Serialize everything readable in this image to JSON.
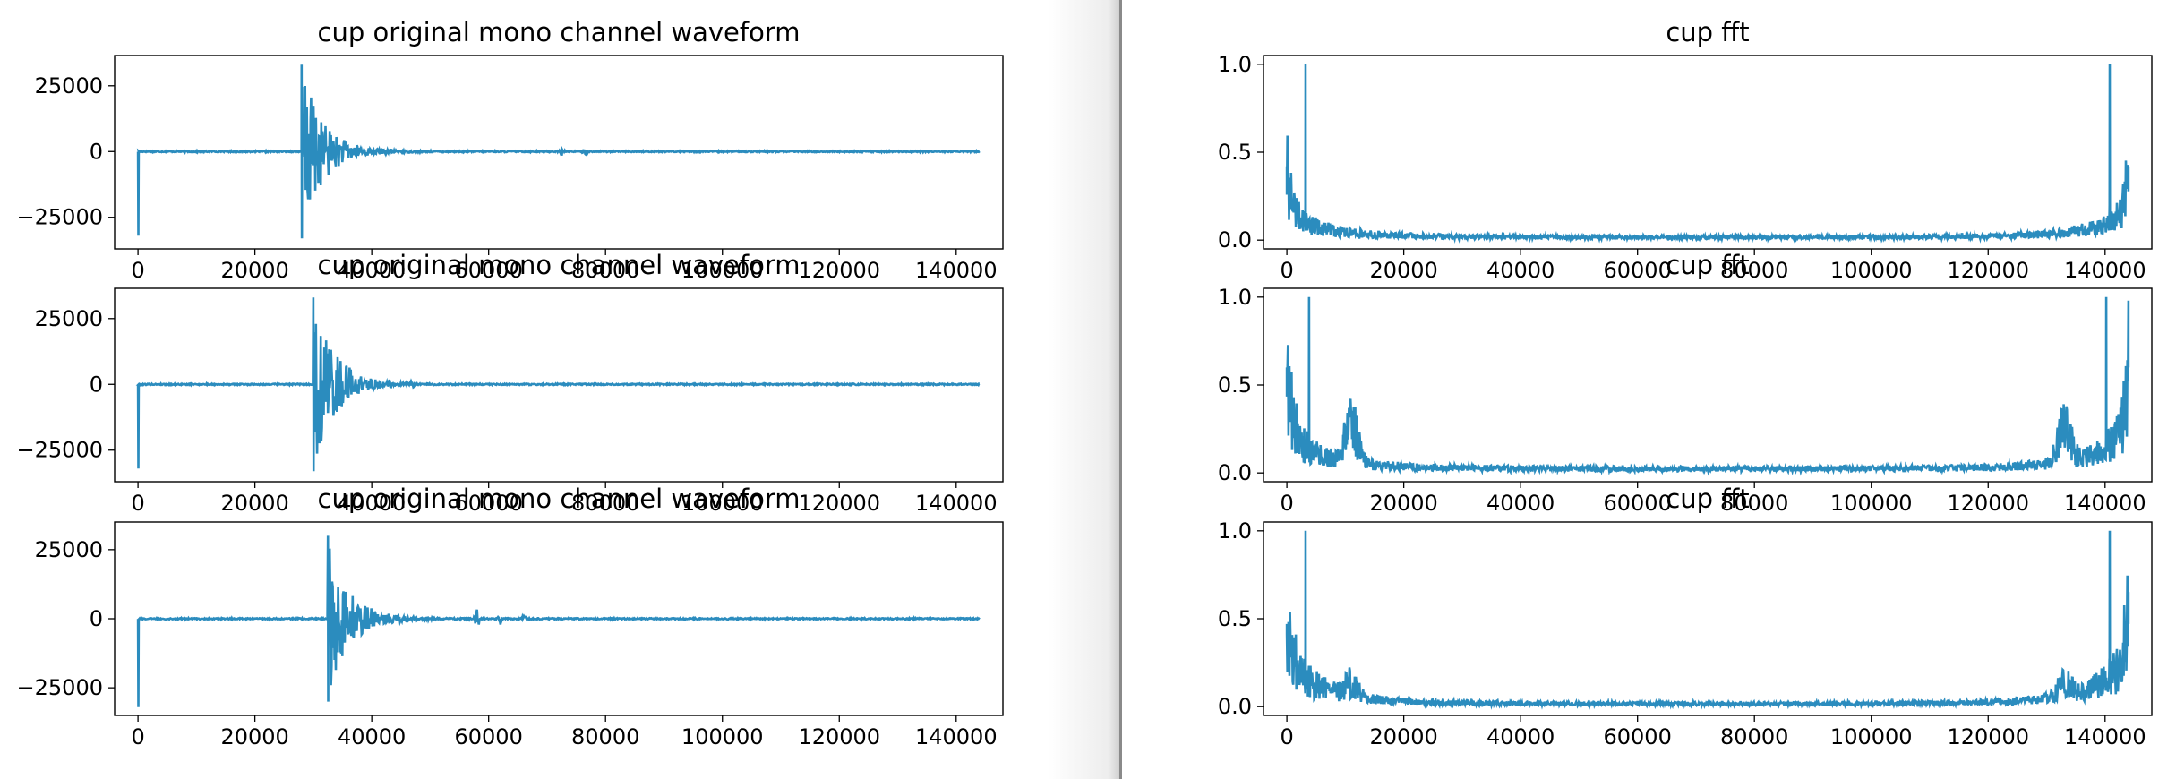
{
  "window": {
    "panels": [
      "waveform-column",
      "fft-column"
    ]
  },
  "colors": {
    "line": "#2b8cbe",
    "axes": "#000000",
    "background": "#ffffff",
    "divider": "#8a8a8a"
  },
  "chart_data": [
    {
      "type": "line",
      "title": "cup original mono channel waveform",
      "xlabel": "",
      "ylabel": "",
      "xlim": [
        -4000,
        148000
      ],
      "ylim": [
        -37000,
        36500
      ],
      "xticks": [
        0,
        20000,
        40000,
        60000,
        80000,
        100000,
        120000,
        140000
      ],
      "yticks": [
        -25000,
        0,
        25000
      ],
      "xtick_labels": [
        "0",
        "20000",
        "40000",
        "60000",
        "80000",
        "100000",
        "120000",
        "140000"
      ],
      "ytick_labels": [
        "−25000",
        "0",
        "25000"
      ],
      "grid": false,
      "series": [
        {
          "kind": "waveform",
          "length": 144000,
          "start_spike": [
            0,
            -32000
          ],
          "spikes": [
            {
              "x": 28000,
              "max": 33000,
              "min": -33000,
              "decay": 3500
            }
          ],
          "minor_bursts": [
            {
              "x": 72500,
              "amp": 1500
            },
            {
              "x": 76500,
              "amp": 1300
            }
          ],
          "noise": 250
        }
      ]
    },
    {
      "type": "line",
      "title": "cup fft",
      "xlabel": "",
      "ylabel": "",
      "xlim": [
        -4000,
        148000
      ],
      "ylim": [
        -0.05,
        1.05
      ],
      "xticks": [
        0,
        20000,
        40000,
        60000,
        80000,
        100000,
        120000,
        140000
      ],
      "yticks": [
        0.0,
        0.5,
        1.0
      ],
      "xtick_labels": [
        "0",
        "20000",
        "40000",
        "60000",
        "80000",
        "100000",
        "120000",
        "140000"
      ],
      "ytick_labels": [
        "0.0",
        "0.5",
        "1.0"
      ],
      "grid": false,
      "series": [
        {
          "kind": "fft",
          "length": 144000,
          "peak_x": 3200,
          "peak": 1.0,
          "start_level": 0.42,
          "mid_floor": 0.02,
          "spread": 0.15,
          "hump": 0
        }
      ]
    },
    {
      "type": "line",
      "title": "cup original mono channel waveform",
      "xlabel": "",
      "ylabel": "",
      "xlim": [
        -4000,
        148000
      ],
      "ylim": [
        -37000,
        36500
      ],
      "xticks": [
        0,
        20000,
        40000,
        60000,
        80000,
        100000,
        120000,
        140000
      ],
      "yticks": [
        -25000,
        0,
        25000
      ],
      "xtick_labels": [
        "0",
        "20000",
        "40000",
        "60000",
        "80000",
        "100000",
        "120000",
        "140000"
      ],
      "ytick_labels": [
        "−25000",
        "0",
        "25000"
      ],
      "grid": false,
      "series": [
        {
          "kind": "waveform",
          "length": 144000,
          "start_spike": [
            0,
            -32000
          ],
          "spikes": [
            {
              "x": 30000,
              "max": 33000,
              "min": -33000,
              "decay": 3500
            }
          ],
          "minor_bursts": [
            {
              "x": 36000,
              "amp": 2500
            },
            {
              "x": 43000,
              "amp": 1200
            },
            {
              "x": 47000,
              "amp": 900
            }
          ],
          "noise": 250
        }
      ]
    },
    {
      "type": "line",
      "title": "cup fft",
      "xlabel": "",
      "ylabel": "",
      "xlim": [
        -4000,
        148000
      ],
      "ylim": [
        -0.05,
        1.05
      ],
      "xticks": [
        0,
        20000,
        40000,
        60000,
        80000,
        100000,
        120000,
        140000
      ],
      "yticks": [
        0.0,
        0.5,
        1.0
      ],
      "xtick_labels": [
        "0",
        "20000",
        "40000",
        "60000",
        "80000",
        "100000",
        "120000",
        "140000"
      ],
      "ytick_labels": [
        "0.0",
        "0.5",
        "1.0"
      ],
      "grid": false,
      "series": [
        {
          "kind": "fft",
          "length": 144000,
          "peak_x": 3800,
          "peak": 1.0,
          "start_level": 0.6,
          "mid_floor": 0.03,
          "spread": 0.25,
          "hump": 0.28
        }
      ]
    },
    {
      "type": "line",
      "title": "cup original mono channel waveform",
      "xlabel": "",
      "ylabel": "",
      "xlim": [
        -4000,
        148000
      ],
      "ylim": [
        -35000,
        35000
      ],
      "xticks": [
        0,
        20000,
        40000,
        60000,
        80000,
        100000,
        120000,
        140000
      ],
      "yticks": [
        -25000,
        0,
        25000
      ],
      "xtick_labels": [
        "0",
        "20000",
        "40000",
        "60000",
        "80000",
        "100000",
        "120000",
        "140000"
      ],
      "ytick_labels": [
        "−25000",
        "0",
        "25000"
      ],
      "grid": false,
      "series": [
        {
          "kind": "waveform",
          "length": 144000,
          "start_spike": [
            0,
            -32000
          ],
          "spikes": [
            {
              "x": 32500,
              "max": 30000,
              "min": -30000,
              "decay": 3500
            }
          ],
          "minor_bursts": [
            {
              "x": 58000,
              "amp": 4500
            },
            {
              "x": 62000,
              "amp": 2000
            },
            {
              "x": 66000,
              "amp": 1000
            }
          ],
          "noise": 250
        }
      ]
    },
    {
      "type": "line",
      "title": "cup fft",
      "xlabel": "",
      "ylabel": "",
      "xlim": [
        -4000,
        148000
      ],
      "ylim": [
        -0.05,
        1.05
      ],
      "xticks": [
        0,
        20000,
        40000,
        60000,
        80000,
        100000,
        120000,
        140000
      ],
      "yticks": [
        0.0,
        0.5,
        1.0
      ],
      "xtick_labels": [
        "0",
        "20000",
        "40000",
        "60000",
        "80000",
        "100000",
        "120000",
        "140000"
      ],
      "ytick_labels": [
        "0.0",
        "0.5",
        "1.0"
      ],
      "grid": false,
      "series": [
        {
          "kind": "fft",
          "length": 144000,
          "peak_x": 3200,
          "peak": 1.0,
          "start_level": 0.47,
          "mid_floor": 0.02,
          "spread": 0.3,
          "hump": 0.1
        }
      ]
    }
  ]
}
